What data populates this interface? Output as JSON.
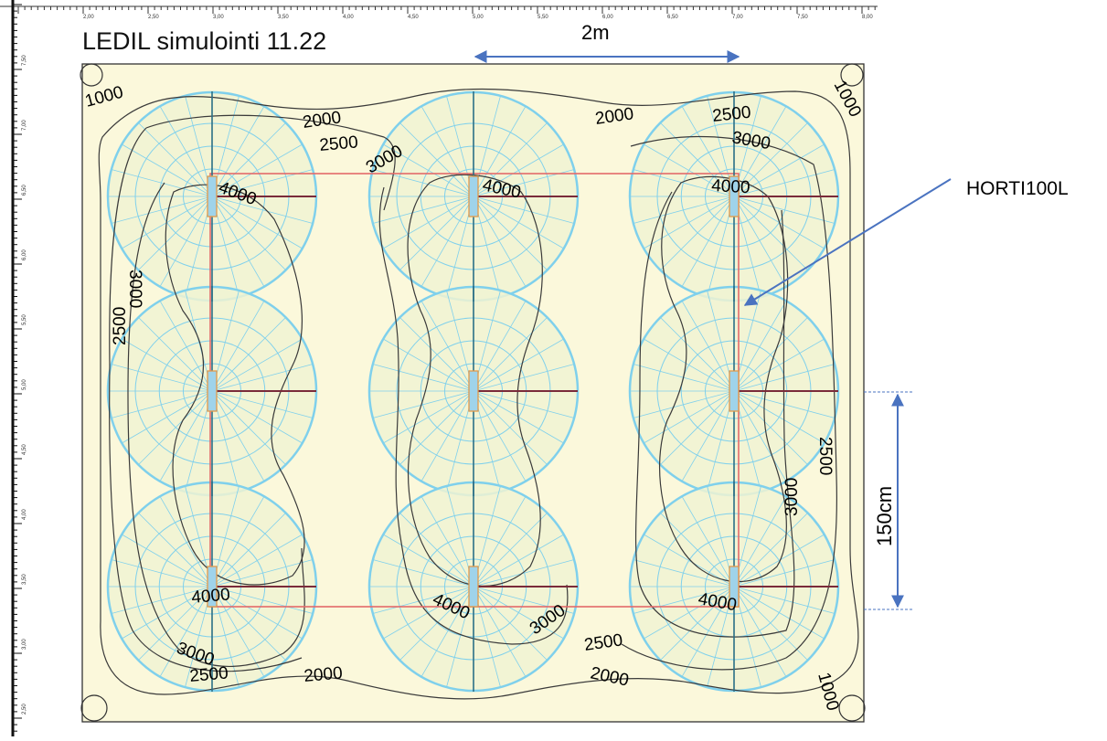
{
  "title": "LEDIL simulointi 11.22",
  "dimension_width": "2m",
  "dimension_height": "150cm",
  "fixture_label": "HORTI100L",
  "ruler_top": [
    "2,00",
    "2,50",
    "3,00",
    "3,50",
    "4,00",
    "4,50",
    "5,00",
    "5,50",
    "6,00",
    "6,50",
    "7,00",
    "7,50",
    "8,00"
  ],
  "ruler_left": [
    "7,50",
    "7,00",
    "6,50",
    "6,00",
    "5,50",
    "5,00",
    "4,50",
    "4,00",
    "3,50",
    "3,00",
    "2,50"
  ],
  "contour_labels": {
    "c1000_tl": "1000",
    "c1000_tr": "1000",
    "c1000_br": "1000",
    "c2000_top_l": "2000",
    "c2000_top_r": "2000",
    "c2000_bot_l": "2000",
    "c2000_bot_r": "2000",
    "c2500_top_l": "2500",
    "c2500_top_r": "2500",
    "c2500_left": "2500",
    "c2500_right": "2500",
    "c2500_bot_l": "2500",
    "c2500_bot_m": "2500",
    "c3000_left": "3000",
    "c3000_right": "3000",
    "c3000_top_m": "3000",
    "c3000_top_r": "3000",
    "c3000_bot_l": "3000",
    "c3000_bot_m": "3000",
    "c4000_tl": "4000",
    "c4000_tm": "4000",
    "c4000_tr": "4000",
    "c4000_bl": "4000",
    "c4000_bm": "4000",
    "c4000_br": "4000"
  },
  "colors": {
    "panel_fill": "#fbf8db",
    "polar_stroke": "#7fd0ec",
    "polar_fill": "#f0f3d2",
    "contour": "#3a3a3a",
    "guide_red": "#e36a6a",
    "arrow_blue": "#4a73c0",
    "fixture_orange": "#e39a4a",
    "axis_dark": "#7a2b3a"
  }
}
